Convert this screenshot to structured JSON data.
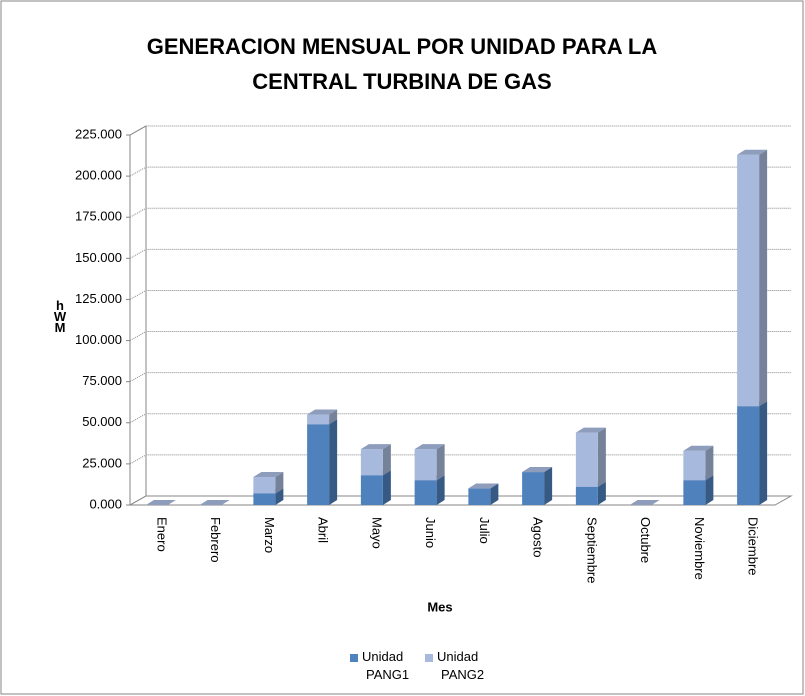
{
  "chart_data": {
    "type": "bar",
    "stacked": true,
    "title": "GENERACION MENSUAL POR  UNIDAD PARA LA CENTRAL TURBINA DE GAS",
    "x_label": "Mes",
    "y_label": "MWh",
    "categories": [
      "Enero",
      "Febrero",
      "Marzo",
      "Abril",
      "Mayo",
      "Junio",
      "Julio",
      "Agosto",
      "Septiembre",
      "Octubre",
      "Noviembre",
      "Diciembre"
    ],
    "series": [
      {
        "name": "Unidad PANG1",
        "color": "#4f81bd",
        "values": [
          0,
          0,
          7,
          49,
          18,
          15,
          10,
          20,
          11,
          0,
          15,
          60
        ]
      },
      {
        "name": "Unidad PANG2",
        "color": "#a7b9dc",
        "values": [
          0,
          0,
          10,
          6,
          16,
          19,
          0,
          0,
          33,
          0,
          18,
          153
        ]
      }
    ],
    "ylim": [
      0,
      225
    ],
    "yticks": [
      {
        "value": 0,
        "label": "0.000"
      },
      {
        "value": 25,
        "label": "25.000"
      },
      {
        "value": 50,
        "label": "50.000"
      },
      {
        "value": 75,
        "label": "75.000"
      },
      {
        "value": 100,
        "label": "100.000"
      },
      {
        "value": 125,
        "label": "125.000"
      },
      {
        "value": 150,
        "label": "150.000"
      },
      {
        "value": 175,
        "label": "175.000"
      },
      {
        "value": 200,
        "label": "200.000"
      },
      {
        "value": 225,
        "label": "225.000"
      }
    ],
    "grid": true,
    "legend": "bottom"
  }
}
